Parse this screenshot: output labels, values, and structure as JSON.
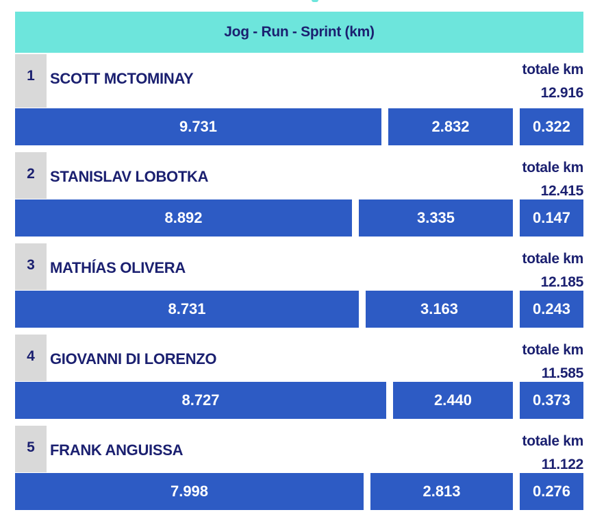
{
  "title": "Jog - Run - Sprint (km)",
  "colors": {
    "header_bg": "#6de5dc",
    "bar": "#2d5bc4",
    "text": "#1b2070",
    "rank_bg": "#d9d9d9"
  },
  "total_label": "totale km",
  "players": [
    {
      "rank": "1",
      "name": "SCOTT MCTOMINAY",
      "total": "12.916",
      "jog": "9.731",
      "run": "2.832",
      "sprint": "0.322"
    },
    {
      "rank": "2",
      "name": "STANISLAV LOBOTKA",
      "total": "12.415",
      "jog": "8.892",
      "run": "3.335",
      "sprint": "0.147"
    },
    {
      "rank": "3",
      "name": "MATHÍAS OLIVERA",
      "total": "12.185",
      "jog": "8.731",
      "run": "3.163",
      "sprint": "0.243"
    },
    {
      "rank": "4",
      "name": "GIOVANNI DI LORENZO",
      "total": "11.585",
      "jog": "8.727",
      "run": "2.440",
      "sprint": "0.373"
    },
    {
      "rank": "5",
      "name": "FRANK ANGUISSA",
      "total": "11.122",
      "jog": "7.998",
      "run": "2.813",
      "sprint": "0.276"
    }
  ]
}
